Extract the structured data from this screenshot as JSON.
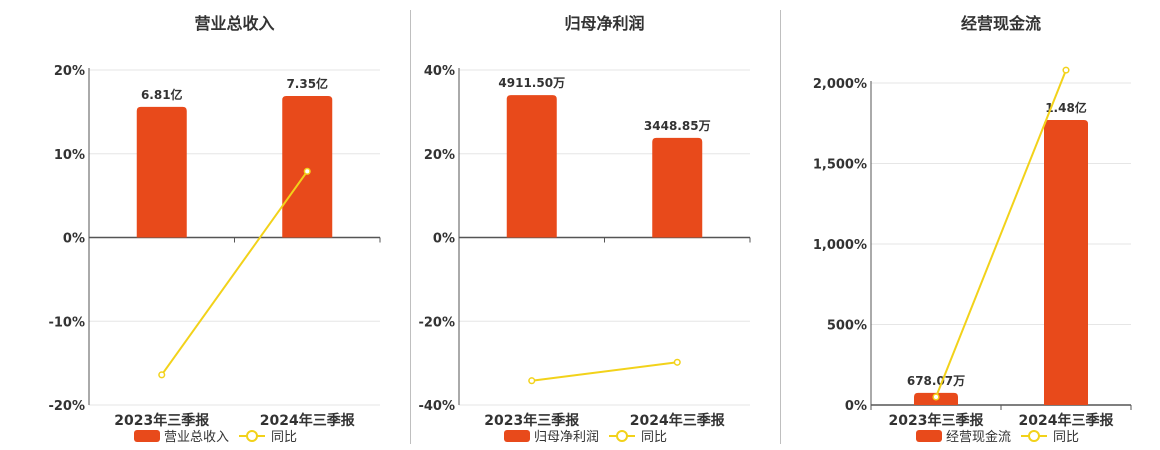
{
  "chart_data": [
    {
      "type": "bar",
      "title": "营业总收入",
      "categories": [
        "2023年三季报",
        "2024年三季报"
      ],
      "series": [
        {
          "name": "营业总收入",
          "type": "bar",
          "axis": "left-scaled",
          "values": [
            6.81,
            7.35
          ],
          "labels": [
            "6.81亿",
            "7.35亿"
          ]
        },
        {
          "name": "同比",
          "type": "line",
          "axis": "left",
          "values": [
            -16.4,
            7.9
          ]
        }
      ],
      "y_ticks": [
        "20%",
        "10%",
        "0%",
        "-10%",
        "-20%"
      ],
      "ylim": [
        -20,
        20
      ],
      "bar_heights_pct": [
        15.6,
        16.9
      ],
      "colors": {
        "bar": "#E84A1B",
        "line": "#F2D21A"
      },
      "legend": "bottom"
    },
    {
      "type": "bar",
      "title": "归母净利润",
      "categories": [
        "2023年三季报",
        "2024年三季报"
      ],
      "series": [
        {
          "name": "归母净利润",
          "type": "bar",
          "axis": "left-scaled",
          "values": [
            4911.5,
            3448.85
          ],
          "labels": [
            "4911.50万",
            "3448.85万"
          ]
        },
        {
          "name": "同比",
          "type": "line",
          "axis": "left",
          "values": [
            -34.2,
            -29.8
          ]
        }
      ],
      "y_ticks": [
        "40%",
        "20%",
        "0%",
        "-20%",
        "-40%"
      ],
      "ylim": [
        -40,
        40
      ],
      "bar_heights_pct": [
        34,
        23.8
      ],
      "colors": {
        "bar": "#E84A1B",
        "line": "#F2D21A"
      },
      "legend": "bottom"
    },
    {
      "type": "bar",
      "title": "经营现金流",
      "categories": [
        "2023年三季报",
        "2024年三季报"
      ],
      "series": [
        {
          "name": "经营现金流",
          "type": "bar",
          "axis": "left-scaled",
          "values": [
            678.07,
            14800
          ],
          "labels": [
            "678.07万",
            "1.48亿"
          ]
        },
        {
          "name": "同比",
          "type": "line",
          "axis": "left",
          "values": [
            50,
            2080
          ]
        }
      ],
      "y_ticks": [
        "2,000%",
        "1,500%",
        "1,000%",
        "500%",
        "0%"
      ],
      "ylim": [
        0,
        2000
      ],
      "bar_heights_pct": [
        75,
        1770
      ],
      "colors": {
        "bar": "#E84A1B",
        "line": "#F2D21A"
      },
      "legend": "bottom"
    }
  ]
}
